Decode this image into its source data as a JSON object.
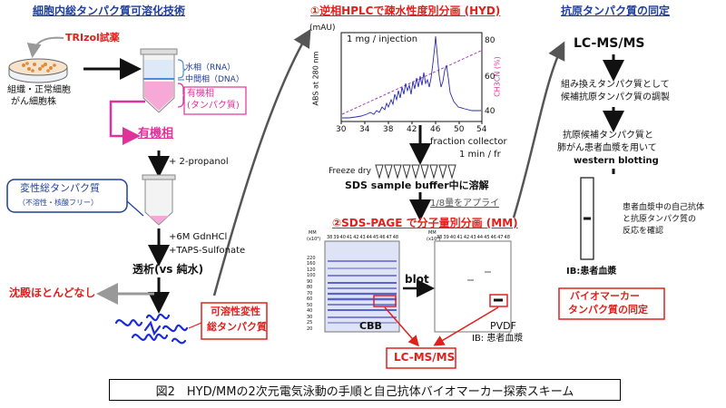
{
  "left": {
    "title": "細胞内総タンパク質可溶化技術",
    "trizol": "TRIzol試薬",
    "dish_label_1": "組織・正常細胞",
    "dish_label_2": "がん細胞株",
    "water_phase": "水相（RNA）",
    "mid_phase": "中間相（DNA）",
    "org_phase_1": "有機相",
    "org_phase_2": "(タンパク質)",
    "organic_phase": "有機相",
    "propanol": "+ 2-propanol",
    "denatured_1": "変性総タンパク質",
    "denatured_2": "（不溶性・核酸フリー）",
    "gdn": "+6M GdnHCl",
    "taps": "+TAPS-Sulfonate",
    "dialysis": "透析(vs 純水)",
    "no_precip": "沈殿ほとんどなし",
    "soluble_1": "可溶性変性",
    "soluble_2": "総タンパク質"
  },
  "middle": {
    "title": "①逆相HPLCで疎水性度別分画 (HYD)",
    "mau": "(mAU)",
    "injection": "1 mg / injection",
    "ylabel": "ABS at 280 nm",
    "y2label": "CH3CN (%)",
    "y2ticks": [
      "80",
      "60",
      "40"
    ],
    "xticks": [
      "30",
      "34",
      "38",
      "42",
      "46",
      "50",
      "54"
    ],
    "collector_1": "fraction collector",
    "collector_2": "1 min / fr",
    "freeze": "Freeze dry",
    "sds_buffer": "SDS sample buffer中に溶解",
    "apply": "1/8量をアプライ",
    "sds_title": "②SDS-PAGE で分子量別分画 (MM)",
    "blot": "blot",
    "cbb": "CBB",
    "pvdf": "PVDF",
    "ib_note": "IB: 患者血漿",
    "lcms": "LC-MS/MS",
    "mm": "MM",
    "kda": "(x10³)",
    "lanes": [
      "38",
      "39",
      "40",
      "41",
      "42",
      "43",
      "44",
      "45",
      "46",
      "47",
      "48"
    ],
    "mw": [
      "220",
      "160",
      "120",
      "100",
      "90",
      "80",
      "70",
      "60",
      "50",
      "40",
      "30",
      "25",
      "20"
    ]
  },
  "right": {
    "title": "抗原タンパク質の同定",
    "lcms": "LC-MS/MS",
    "recomb_1": "組み換えタンパク質として",
    "recomb_2": "候補抗原タンパク質の調製",
    "cand_1": "抗原候補タンパク質と",
    "cand_2": "肺がん患者血漿を用いて",
    "cand_3": "western blotting",
    "note_1": "患者血漿中の自己抗体",
    "note_2": "と抗原タンパク質の",
    "note_3": "反応を確認",
    "ib": "IB:患者血漿",
    "biomarker_1": "バイオマーカー",
    "biomarker_2": "タンパク質の同定"
  },
  "caption": "図2　HYD/MMの2次元電気泳動の手順と自己抗体バイオマーカー探索スキーム",
  "colors": {
    "blue": "#1f3f9a",
    "red": "#e0201b",
    "magenta": "#e0339a",
    "trace": "#2a2aa8"
  }
}
